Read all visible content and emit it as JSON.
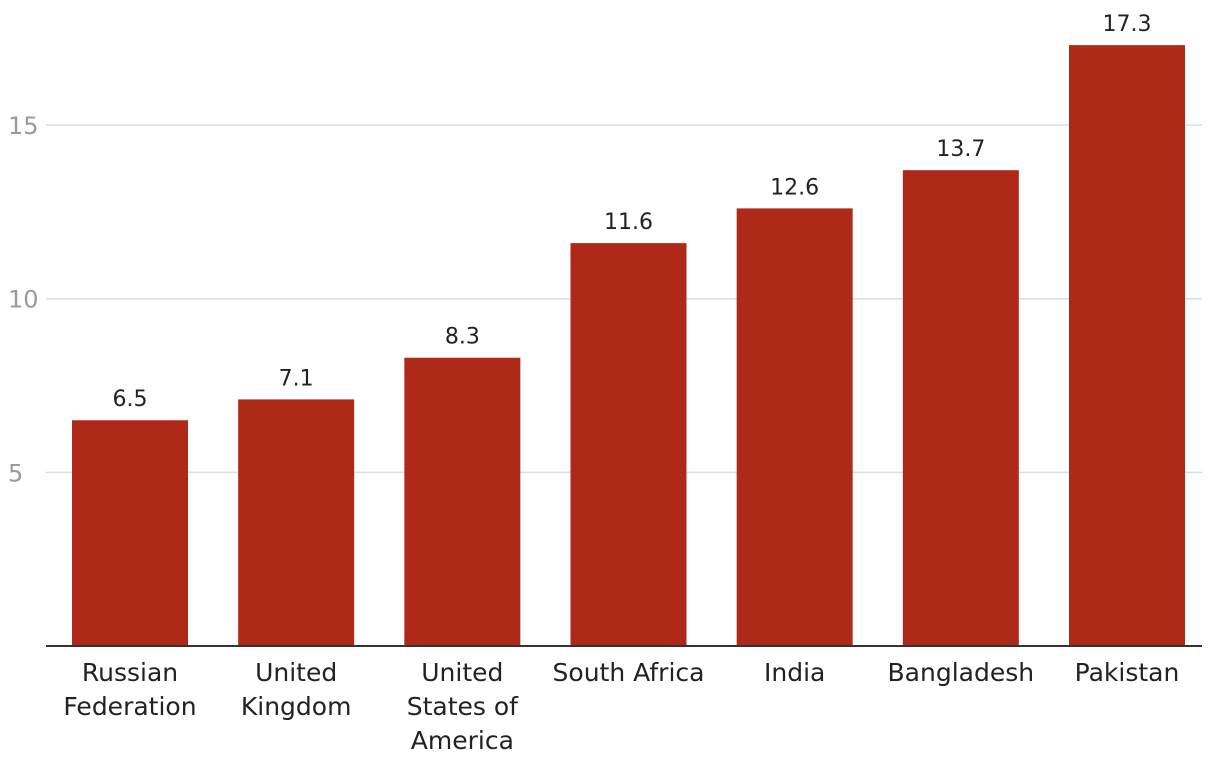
{
  "chart_data": {
    "type": "bar",
    "categories": [
      [
        "Russian",
        "Federation"
      ],
      [
        "United",
        "Kingdom"
      ],
      [
        "United",
        "States of",
        "America"
      ],
      [
        "South Africa"
      ],
      [
        "India"
      ],
      [
        "Bangladesh"
      ],
      [
        "Pakistan"
      ]
    ],
    "values": [
      6.5,
      7.1,
      8.3,
      11.6,
      12.6,
      13.7,
      17.3
    ],
    "value_labels": [
      "6.5",
      "7.1",
      "8.3",
      "11.6",
      "12.6",
      "13.7",
      "17.3"
    ],
    "yticks": [
      5,
      10,
      15
    ],
    "ytick_labels": [
      "5",
      "10",
      "15"
    ],
    "ylim": [
      0,
      18.6
    ],
    "grid": true,
    "bar_color": "#ae2918",
    "title": "",
    "xlabel": "",
    "ylabel": ""
  }
}
